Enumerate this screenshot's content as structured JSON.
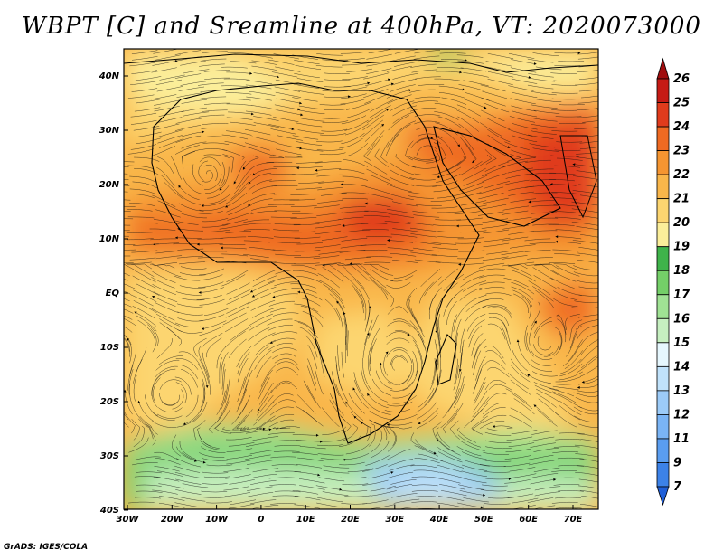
{
  "title": "WBPT [C] and Sreamline at 400hPa, VT: 2020073000",
  "credit": "GrADS: IGES/COLA",
  "map": {
    "lon_labels": [
      "30W",
      "20W",
      "10W",
      "0",
      "10E",
      "20E",
      "30E",
      "40E",
      "50E",
      "60E",
      "70E"
    ],
    "lat_labels": [
      "40N",
      "30N",
      "20N",
      "10N",
      "EQ",
      "10S",
      "20S",
      "30S",
      "40S"
    ],
    "lon_range": [
      -30,
      75
    ],
    "lat_range": [
      -40,
      45
    ]
  },
  "colorbar": {
    "labels": [
      "7",
      "9",
      "11",
      "12",
      "13",
      "14",
      "15",
      "16",
      "17",
      "18",
      "19",
      "20",
      "21",
      "22",
      "23",
      "24",
      "25",
      "26"
    ],
    "colors": [
      "#1f5fd8",
      "#3c82e8",
      "#5a9df0",
      "#7ab4f5",
      "#9ccbf8",
      "#c0e2fb",
      "#e6f7fe",
      "#c6efc0",
      "#a0e294",
      "#74cf68",
      "#3fb34a",
      "#fbee9a",
      "#fcd570",
      "#f9b64a",
      "#f59531",
      "#ef6a22",
      "#e03b1c",
      "#c51a15",
      "#a00d0e"
    ]
  },
  "chart_data": {
    "type": "heatmap",
    "title": "WBPT [C] and Sreamline at 400hPa, VT: 2020073000",
    "x_ticks": [
      "30W",
      "20W",
      "10W",
      "0",
      "10E",
      "20E",
      "30E",
      "40E",
      "50E",
      "60E",
      "70E"
    ],
    "y_ticks": [
      "40N",
      "30N",
      "20N",
      "10N",
      "EQ",
      "10S",
      "20S",
      "30S",
      "40S"
    ],
    "colorbar_levels": [
      7,
      9,
      11,
      12,
      13,
      14,
      15,
      16,
      17,
      18,
      19,
      20,
      21,
      22,
      23,
      24,
      25,
      26
    ]
  }
}
